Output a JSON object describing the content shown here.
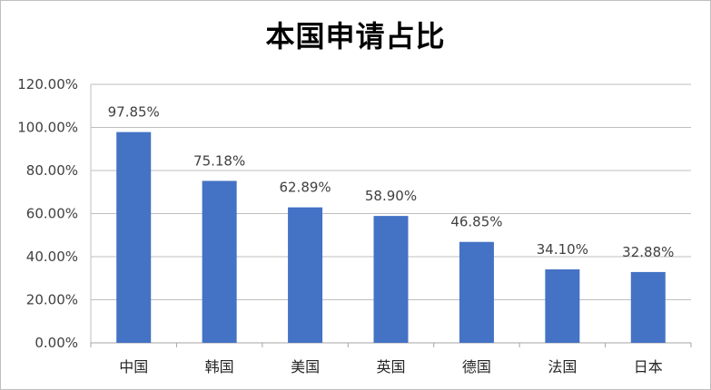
{
  "chart_data": {
    "type": "bar",
    "title": "本国申请占比",
    "xlabel": "",
    "ylabel": "",
    "categories": [
      "中国",
      "韩国",
      "美国",
      "英国",
      "德国",
      "法国",
      "日本"
    ],
    "values": [
      97.85,
      75.18,
      62.89,
      58.9,
      46.85,
      34.1,
      32.88
    ],
    "data_labels": [
      "97.85%",
      "75.18%",
      "62.89%",
      "58.90%",
      "46.85%",
      "34.10%",
      "32.88%"
    ],
    "ylim": [
      0,
      120
    ],
    "yticks": [
      0,
      20,
      40,
      60,
      80,
      100,
      120
    ],
    "ytick_labels": [
      "0.00%",
      "20.00%",
      "40.00%",
      "60.00%",
      "80.00%",
      "100.00%",
      "120.00%"
    ],
    "grid": true,
    "legend": "none",
    "colors": {
      "bar": "#4472c4",
      "grid": "#bfbfbf",
      "axis": "#a6a6a6"
    }
  }
}
